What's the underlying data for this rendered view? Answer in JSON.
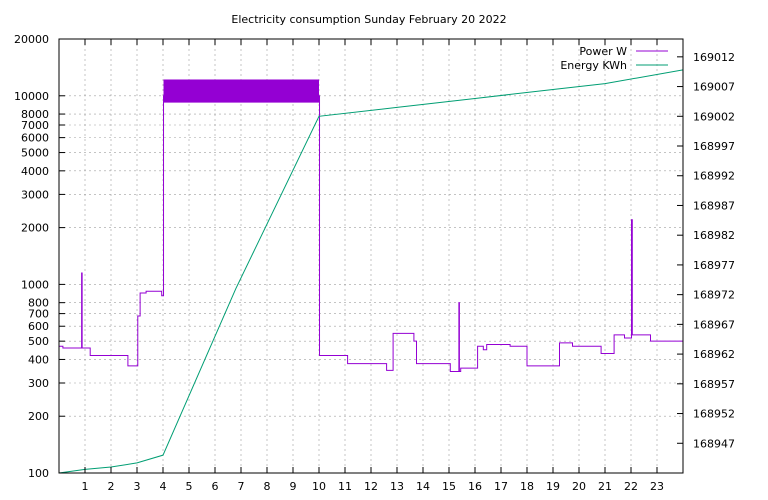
{
  "chart_data": {
    "type": "line",
    "title": "Electricity consumption Sunday February 20 2022",
    "grid": true,
    "legend_position": "top-right",
    "x_axis": {
      "range": [
        0,
        24
      ],
      "ticks": [
        1,
        2,
        3,
        4,
        5,
        6,
        7,
        8,
        9,
        10,
        11,
        12,
        13,
        14,
        15,
        16,
        17,
        18,
        19,
        20,
        21,
        22,
        23
      ]
    },
    "y_left": {
      "scale": "log",
      "range": [
        100,
        20000
      ],
      "ticks": [
        100,
        200,
        300,
        400,
        500,
        600,
        700,
        800,
        1000,
        2000,
        3000,
        4000,
        5000,
        6000,
        7000,
        8000,
        10000,
        20000
      ]
    },
    "y_right": {
      "scale": "linear",
      "range": [
        168942,
        169015
      ],
      "ticks": [
        168947,
        168952,
        168957,
        168962,
        168967,
        168972,
        168977,
        168982,
        168987,
        168992,
        168997,
        169002,
        169007,
        169012
      ]
    },
    "series": [
      {
        "name": "Power W",
        "axis": "left",
        "color": "#9400d3",
        "step": true,
        "points": [
          [
            0,
            470
          ],
          [
            0.15,
            460
          ],
          [
            0.85,
            460
          ],
          [
            0.87,
            1150
          ],
          [
            0.89,
            460
          ],
          [
            1.1,
            460
          ],
          [
            1.2,
            420
          ],
          [
            2.6,
            420
          ],
          [
            2.65,
            370
          ],
          [
            3.0,
            370
          ],
          [
            3.03,
            680
          ],
          [
            3.1,
            680
          ],
          [
            3.12,
            900
          ],
          [
            3.3,
            900
          ],
          [
            3.35,
            920
          ],
          [
            3.9,
            920
          ],
          [
            3.95,
            870
          ],
          [
            4.0,
            870
          ],
          [
            4.02,
            10000
          ],
          [
            10.0,
            10000
          ],
          [
            10.02,
            420
          ],
          [
            11.0,
            420
          ],
          [
            11.1,
            380
          ],
          [
            12.5,
            380
          ],
          [
            12.6,
            350
          ],
          [
            12.8,
            350
          ],
          [
            12.85,
            550
          ],
          [
            13.6,
            550
          ],
          [
            13.65,
            500
          ],
          [
            13.7,
            500
          ],
          [
            13.75,
            380
          ],
          [
            15.0,
            380
          ],
          [
            15.05,
            345
          ],
          [
            15.35,
            345
          ],
          [
            15.38,
            800
          ],
          [
            15.4,
            345
          ],
          [
            15.45,
            360
          ],
          [
            16.05,
            360
          ],
          [
            16.1,
            470
          ],
          [
            16.3,
            470
          ],
          [
            16.32,
            450
          ],
          [
            16.4,
            450
          ],
          [
            16.45,
            480
          ],
          [
            17.3,
            480
          ],
          [
            17.35,
            470
          ],
          [
            17.95,
            470
          ],
          [
            18.0,
            370
          ],
          [
            19.2,
            370
          ],
          [
            19.25,
            490
          ],
          [
            19.7,
            490
          ],
          [
            19.75,
            470
          ],
          [
            20.8,
            470
          ],
          [
            20.85,
            430
          ],
          [
            21.3,
            430
          ],
          [
            21.35,
            540
          ],
          [
            21.7,
            540
          ],
          [
            21.75,
            520
          ],
          [
            22.0,
            520
          ],
          [
            22.02,
            2200
          ],
          [
            22.05,
            540
          ],
          [
            22.7,
            540
          ],
          [
            22.75,
            500
          ],
          [
            24,
            500
          ]
        ]
      },
      {
        "name": "Energy KWh",
        "axis": "right",
        "color": "#009e73",
        "step": false,
        "points": [
          [
            0,
            168942
          ],
          [
            1,
            168942.6
          ],
          [
            2,
            168943
          ],
          [
            3,
            168943.7
          ],
          [
            4,
            168945
          ],
          [
            6.8,
            168973
          ],
          [
            10.0,
            169002
          ],
          [
            13,
            169003.5
          ],
          [
            16,
            169005
          ],
          [
            19,
            169006.5
          ],
          [
            21,
            169007.5
          ],
          [
            24,
            169009.8
          ]
        ]
      }
    ]
  }
}
